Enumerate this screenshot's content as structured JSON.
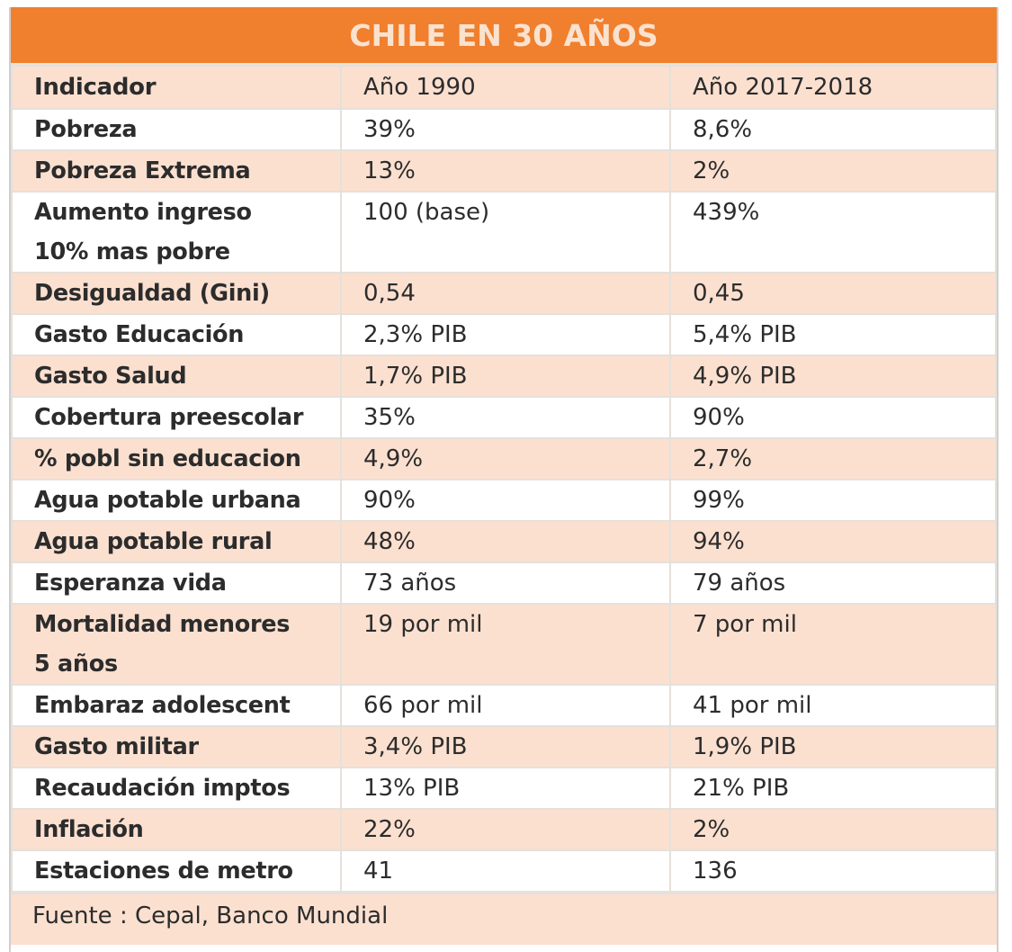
{
  "title": "CHILE EN 30 AÑOS",
  "columns": [
    "Indicador",
    "Año 1990",
    "Año 2017-2018"
  ],
  "rows": [
    {
      "indicator": "Pobreza",
      "v1990": "39%",
      "v2018": "8,6%"
    },
    {
      "indicator": "Pobreza Extrema",
      "v1990": "13%",
      "v2018": "2%"
    },
    {
      "indicator": "Aumento ingreso",
      "indicator_line2": "10% mas pobre",
      "v1990": "100 (base)",
      "v2018": "439%"
    },
    {
      "indicator": "Desigualdad (Gini)",
      "v1990": "0,54",
      "v2018": "0,45"
    },
    {
      "indicator": "Gasto Educación",
      "v1990": "2,3% PIB",
      "v2018": "5,4% PIB"
    },
    {
      "indicator": "Gasto Salud",
      "v1990": "1,7% PIB",
      "v2018": "4,9% PIB"
    },
    {
      "indicator": "Cobertura preescolar",
      "v1990": "35%",
      "v2018": "90%"
    },
    {
      "indicator": "% pobl sin educacion",
      "v1990": "4,9%",
      "v2018": "2,7%"
    },
    {
      "indicator": "Agua potable urbana",
      "v1990": "90%",
      "v2018": "99%"
    },
    {
      "indicator": "Agua potable rural",
      "v1990": "48%",
      "v2018": "94%"
    },
    {
      "indicator": "Esperanza vida",
      "v1990": "73 años",
      "v2018": "79 años"
    },
    {
      "indicator": "Mortalidad menores",
      "indicator_line2": "5 años",
      "v1990": "19 por mil",
      "v2018": "7 por mil"
    },
    {
      "indicator": "Embaraz adolescent",
      "v1990": "66 por mil",
      "v2018": "41 por mil"
    },
    {
      "indicator": "Gasto militar",
      "v1990": "3,4% PIB",
      "v2018": "1,9% PIB"
    },
    {
      "indicator": "Recaudación imptos",
      "v1990": "13% PIB",
      "v2018": "21% PIB"
    },
    {
      "indicator": "Inflación",
      "v1990": "22%",
      "v2018": "2%"
    },
    {
      "indicator": "Estaciones de metro",
      "v1990": "41",
      "v2018": "136"
    }
  ],
  "source": "Fuente : Cepal, Banco Mundial",
  "colors": {
    "title_bg": "#f07f2e",
    "title_text": "#fbe2cf",
    "row_shade": "#fbe0d0",
    "row_white": "#ffffff"
  }
}
